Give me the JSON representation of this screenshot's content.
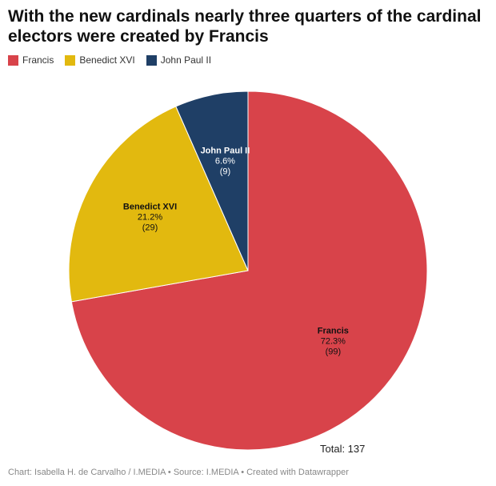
{
  "chart_data": {
    "type": "pie",
    "title": "With the new cardinals nearly three quarters of the cardinal electors were created by Francis",
    "categories": [
      "Francis",
      "Benedict XVI",
      "John Paul II"
    ],
    "values": [
      72.3,
      21.2,
      6.6
    ],
    "value_labels": [
      "72.3%",
      "21.2%",
      "6.6%"
    ],
    "counts": [
      99,
      29,
      9
    ],
    "count_labels": [
      "(99)",
      "(29)",
      "(9)"
    ],
    "colors": [
      "#d8434a",
      "#e2b90f",
      "#1f3f66"
    ],
    "annotation": "Total: 137",
    "footer": "Chart: Isabella H. de Carvalho / I.MEDIA • Source: I.MEDIA • Created with Datawrapper"
  }
}
